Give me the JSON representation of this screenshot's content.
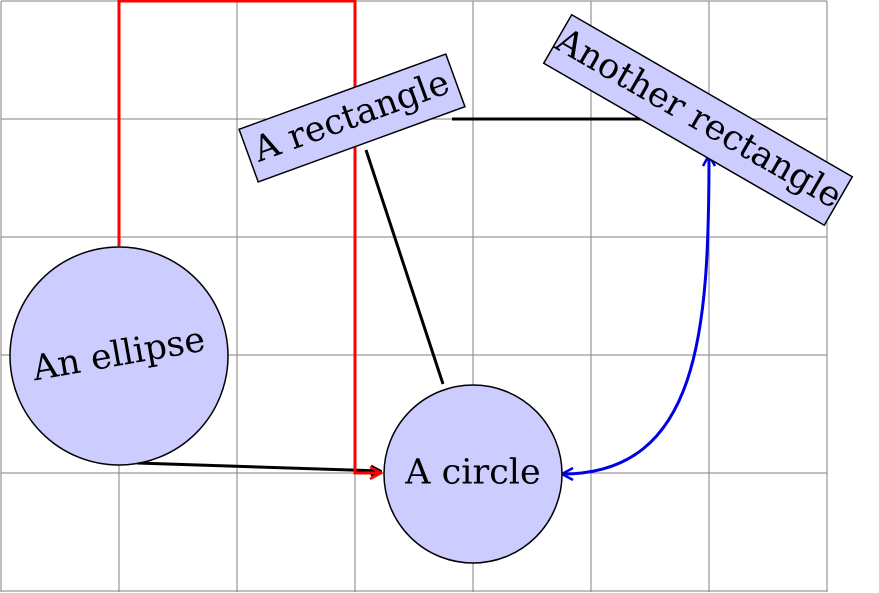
{
  "colors": {
    "node_fill": "#ccccff",
    "node_stroke": "#000000",
    "grid": "#808080",
    "red_edge": "#ff0000",
    "blue_edge": "#0000e6",
    "black_edge": "#000000"
  },
  "nodes": {
    "ellipse": {
      "label": "An ellipse"
    },
    "rectangle": {
      "label": "A rectangle"
    },
    "another_rectangle": {
      "label": "Another rectangle"
    },
    "circle": {
      "label": "A circle"
    }
  },
  "edges": [
    {
      "from": "ellipse",
      "to": "circle",
      "style": "black-arrow"
    },
    {
      "from": "ellipse",
      "to": "circle",
      "style": "red-orthogonal-arrow"
    },
    {
      "from": "rectangle",
      "to": "circle",
      "style": "black-line"
    },
    {
      "from": "rectangle",
      "to": "another_rectangle",
      "style": "black-line"
    },
    {
      "from": "circle",
      "to": "another_rectangle",
      "style": "blue-curved-double-arrow"
    }
  ]
}
